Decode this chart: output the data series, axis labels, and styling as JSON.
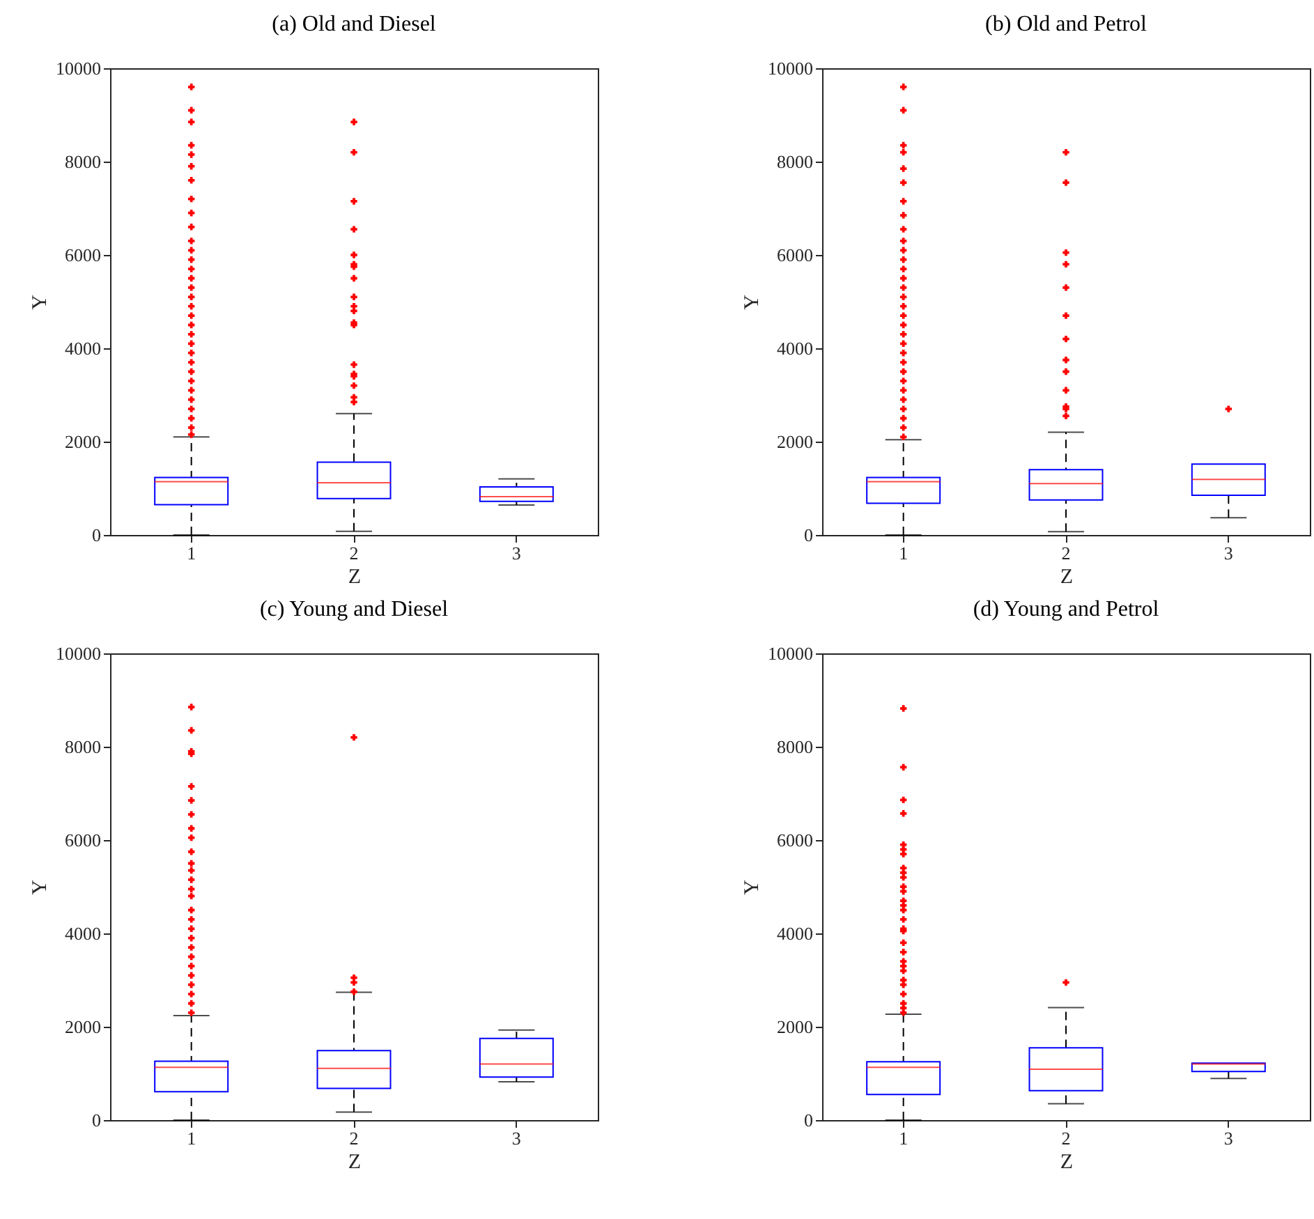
{
  "chart_data": [
    {
      "type": "box",
      "title": "(a) Old and Diesel",
      "xlabel": "Z",
      "ylabel": "Y",
      "categories": [
        "1",
        "2",
        "3"
      ],
      "ylim": [
        0,
        10000
      ],
      "yticks": [
        0,
        2000,
        4000,
        6000,
        8000,
        10000
      ],
      "series": [
        {
          "color": "#0000ff",
          "boxes": [
            {
              "low": 0,
              "q1": 650,
              "median": 1140,
              "q3": 1230,
              "high": 2100,
              "outliers": [
                9600,
                9100,
                8850,
                8350,
                8150,
                7900,
                7600,
                7200,
                6900,
                6600,
                6300,
                6100,
                5900,
                5700,
                5500,
                5300,
                5100,
                4900,
                4700,
                4500,
                4300,
                4100,
                3900,
                3700,
                3500,
                3300,
                3100,
                2900,
                2700,
                2500,
                2300,
                2150
              ]
            },
            {
              "low": 80,
              "q1": 780,
              "median": 1120,
              "q3": 1560,
              "high": 2600,
              "outliers": [
                8850,
                8200,
                7150,
                6550,
                6000,
                5800,
                5750,
                5500,
                5100,
                4900,
                4800,
                4550,
                4500,
                3650,
                3450,
                3400,
                3200,
                2950,
                2850
              ]
            },
            {
              "low": 640,
              "q1": 720,
              "median": 820,
              "q3": 1030,
              "high": 1200
            }
          ]
        }
      ]
    },
    {
      "type": "box",
      "title": "(b) Old and Petrol",
      "xlabel": "Z",
      "ylabel": "Y",
      "categories": [
        "1",
        "2",
        "3"
      ],
      "ylim": [
        0,
        10000
      ],
      "yticks": [
        0,
        2000,
        4000,
        6000,
        8000,
        10000
      ],
      "series": [
        {
          "color": "#0000ff",
          "boxes": [
            {
              "low": 0,
              "q1": 680,
              "median": 1140,
              "q3": 1230,
              "high": 2040,
              "outliers": [
                9600,
                9100,
                8350,
                8200,
                7850,
                7550,
                7150,
                6850,
                6550,
                6300,
                6100,
                5900,
                5700,
                5500,
                5300,
                5100,
                4900,
                4700,
                4500,
                4300,
                4100,
                3900,
                3700,
                3500,
                3300,
                3100,
                2900,
                2700,
                2500,
                2300,
                2100
              ]
            },
            {
              "low": 70,
              "q1": 750,
              "median": 1100,
              "q3": 1400,
              "high": 2200,
              "outliers": [
                8200,
                7550,
                6050,
                5800,
                5300,
                4700,
                4200,
                3750,
                3500,
                3100,
                2750,
                2700,
                2550
              ]
            },
            {
              "low": 370,
              "q1": 850,
              "median": 1190,
              "q3": 1520,
              "high": 1520,
              "outliers": [
                2700
              ]
            }
          ]
        }
      ]
    },
    {
      "type": "box",
      "title": "(c) Young and Diesel",
      "xlabel": "Z",
      "ylabel": "Y",
      "categories": [
        "1",
        "2",
        "3"
      ],
      "ylim": [
        0,
        10000
      ],
      "yticks": [
        0,
        2000,
        4000,
        6000,
        8000,
        10000
      ],
      "series": [
        {
          "color": "#0000ff",
          "boxes": [
            {
              "low": 0,
              "q1": 610,
              "median": 1130,
              "q3": 1260,
              "high": 2240,
              "outliers": [
                8850,
                8350,
                7900,
                7850,
                7150,
                6850,
                6550,
                6250,
                6050,
                5750,
                5500,
                5350,
                5150,
                4950,
                4800,
                4500,
                4300,
                4100,
                3900,
                3700,
                3500,
                3300,
                3100,
                2900,
                2700,
                2500,
                2300
              ]
            },
            {
              "low": 170,
              "q1": 680,
              "median": 1110,
              "q3": 1490,
              "high": 2740,
              "outliers": [
                8200,
                3050,
                2950,
                2750
              ]
            },
            {
              "low": 820,
              "q1": 920,
              "median": 1200,
              "q3": 1750,
              "high": 1930
            }
          ]
        }
      ]
    },
    {
      "type": "box",
      "title": "(d) Young and Petrol",
      "xlabel": "Z",
      "ylabel": "Y",
      "categories": [
        "1",
        "2",
        "3"
      ],
      "ylim": [
        0,
        10000
      ],
      "yticks": [
        0,
        2000,
        4000,
        6000,
        8000,
        10000
      ],
      "series": [
        {
          "color": "#0000ff",
          "boxes": [
            {
              "low": 0,
              "q1": 550,
              "median": 1130,
              "q3": 1250,
              "high": 2270,
              "outliers": [
                8820,
                7560,
                6860,
                6570,
                5900,
                5800,
                5700,
                5400,
                5300,
                5200,
                5000,
                4900,
                4700,
                4600,
                4500,
                4300,
                4100,
                4050,
                3800,
                3600,
                3400,
                3300,
                3200,
                3000,
                2900,
                2700,
                2500,
                2400,
                2300
              ]
            },
            {
              "low": 350,
              "q1": 630,
              "median": 1090,
              "q3": 1550,
              "high": 2410,
              "outliers": [
                2950
              ]
            },
            {
              "low": 890,
              "q1": 1040,
              "median": 1200,
              "q3": 1220,
              "high": 1220
            }
          ]
        }
      ]
    }
  ]
}
